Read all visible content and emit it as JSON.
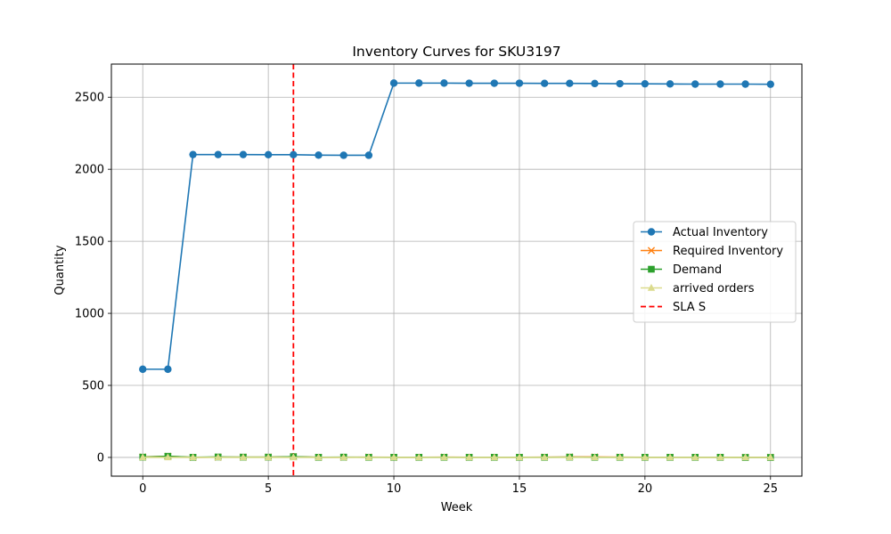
{
  "chart_data": {
    "type": "line",
    "title": "Inventory Curves for SKU3197",
    "xlabel": "Week",
    "ylabel": "Quantity",
    "xlim": [
      -1.25,
      26.25
    ],
    "ylim": [
      -130,
      2730
    ],
    "xticks": [
      0,
      5,
      10,
      15,
      20,
      25
    ],
    "yticks": [
      0,
      500,
      1000,
      1500,
      2000,
      2500
    ],
    "grid": true,
    "legend_position": "center-right",
    "x": [
      0,
      1,
      2,
      3,
      4,
      5,
      6,
      7,
      8,
      9,
      10,
      11,
      12,
      13,
      14,
      15,
      16,
      17,
      18,
      19,
      20,
      21,
      22,
      23,
      24,
      25
    ],
    "series": [
      {
        "name": "Actual Inventory",
        "color": "#1f77b4",
        "marker": "circle",
        "values": [
          612,
          612,
          2102,
          2102,
          2102,
          2101,
          2101,
          2098,
          2097,
          2097,
          2598,
          2598,
          2598,
          2597,
          2597,
          2597,
          2596,
          2596,
          2595,
          2594,
          2593,
          2592,
          2591,
          2591,
          2591,
          2590
        ]
      },
      {
        "name": "Required Inventory",
        "color": "#ff7f0e",
        "marker": "x",
        "values": [
          3,
          8,
          0,
          2,
          2,
          2,
          5,
          1,
          1,
          2,
          1,
          1,
          2,
          1,
          1,
          1,
          2,
          3,
          3,
          2,
          1,
          1,
          1,
          1,
          1,
          1
        ]
      },
      {
        "name": "Demand",
        "color": "#2ca02c",
        "marker": "square",
        "values": [
          2,
          8,
          1,
          3,
          2,
          2,
          5,
          1,
          2,
          1,
          1,
          1,
          1,
          1,
          1,
          1,
          1,
          2,
          1,
          1,
          1,
          1,
          1,
          1,
          0,
          0
        ]
      },
      {
        "name": "arrived orders",
        "color": "#dbdb8d",
        "marker": "triangle",
        "values": [
          0,
          0,
          0,
          0,
          0,
          0,
          0,
          0,
          0,
          0,
          0,
          0,
          0,
          0,
          0,
          0,
          0,
          0,
          0,
          0,
          0,
          0,
          0,
          0,
          0,
          0
        ]
      }
    ],
    "vlines": [
      {
        "name": "SLA S",
        "x": 6,
        "color": "#ff0000",
        "style": "dashed"
      }
    ]
  }
}
